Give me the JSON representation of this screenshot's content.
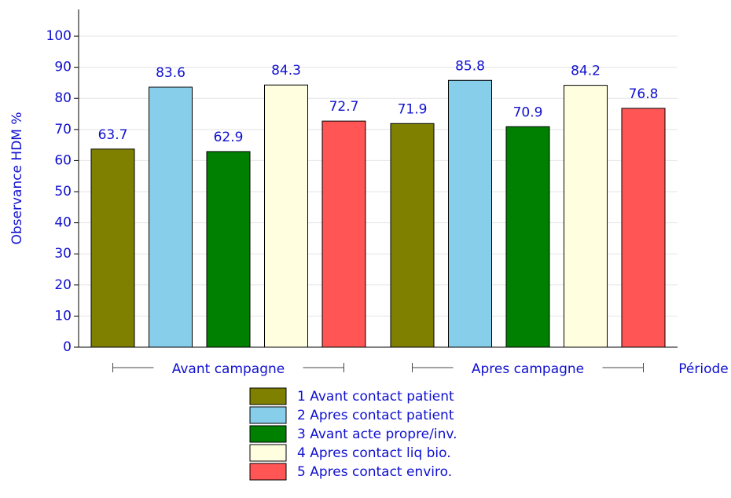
{
  "chart_data": {
    "type": "bar",
    "y_label": "Observance HDM %",
    "x_label": "Période",
    "categories": [
      "Avant campagne",
      "Apres campagne"
    ],
    "series": [
      {
        "name": "1 Avant contact patient",
        "color": "#808000",
        "values": [
          63.7,
          71.9
        ]
      },
      {
        "name": "2 Apres contact patient",
        "color": "#87ceeb",
        "values": [
          83.6,
          85.8
        ]
      },
      {
        "name": "3 Avant acte propre/inv.",
        "color": "#008000",
        "values": [
          62.9,
          70.9
        ]
      },
      {
        "name": "4 Apres contact liq bio.",
        "color": "#ffffe0",
        "values": [
          84.3,
          84.2
        ]
      },
      {
        "name": "5 Apres contact enviro.",
        "color": "#ff5555",
        "values": [
          72.7,
          76.8
        ]
      }
    ],
    "ylim": [
      0,
      108.6
    ],
    "yticks": [
      0,
      10,
      20,
      30,
      40,
      50,
      60,
      70,
      80,
      90,
      100
    ],
    "grid": true
  }
}
